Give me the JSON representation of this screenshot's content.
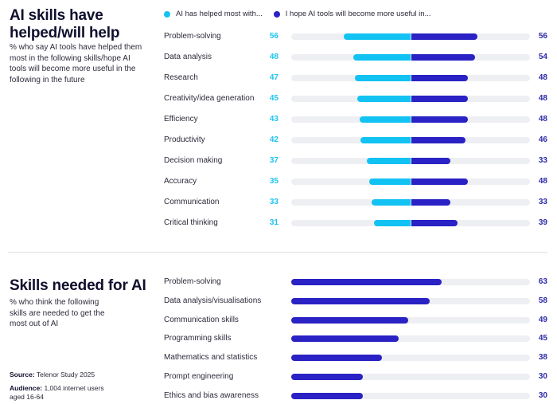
{
  "section1": {
    "title": "AI skills have helped/will help",
    "subtitle": "% who say AI tools have helped them most in the following skills/hope AI tools will become more useful in the following in the future"
  },
  "section2": {
    "title": "Skills needed for AI",
    "subtitle": "% who think the following skills are needed to get the most out of AI"
  },
  "footer": {
    "source_label": "Source:",
    "source_value": "Telenor Study 2025",
    "audience_label": "Audience:",
    "audience_value": "1,004 internet users aged 16-64"
  },
  "colors": {
    "helped": "#12c2f2",
    "hope": "#2a22c4",
    "track": "#eeeff3"
  },
  "chart_data": [
    {
      "type": "bar",
      "orientation": "horizontal-diverging",
      "title": "AI skills have helped/will help",
      "legend_position": "top",
      "categories": [
        "Problem-solving",
        "Data analysis",
        "Research",
        "Creativity/idea generation",
        "Efficiency",
        "Productivity",
        "Decision making",
        "Accuracy",
        "Communication",
        "Critical thinking"
      ],
      "series": [
        {
          "name": "AI has helped most with...",
          "values": [
            56,
            48,
            47,
            45,
            43,
            42,
            37,
            35,
            33,
            31
          ]
        },
        {
          "name": "I hope AI tools will become more useful in...",
          "values": [
            56,
            54,
            48,
            48,
            48,
            46,
            33,
            48,
            33,
            39
          ]
        }
      ],
      "xlim": [
        0,
        100
      ],
      "unit": "%"
    },
    {
      "type": "bar",
      "orientation": "horizontal",
      "title": "Skills needed for AI",
      "categories": [
        "Problem-solving",
        "Data analysis/visualisations",
        "Communication skills",
        "Programming skills",
        "Mathematics and statistics",
        "Prompt engineering",
        "Ethics and bias awareness"
      ],
      "values": [
        63,
        58,
        49,
        45,
        38,
        30,
        30
      ],
      "xlim": [
        0,
        100
      ],
      "unit": "%"
    }
  ]
}
